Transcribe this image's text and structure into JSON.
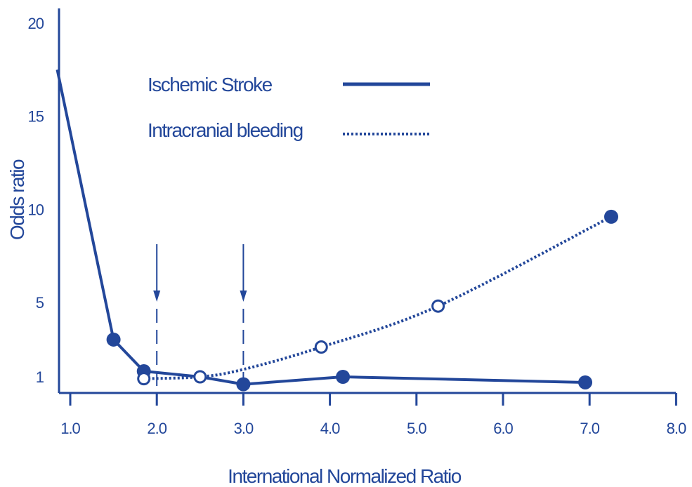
{
  "chart_data": {
    "type": "line",
    "xlabel": "International Normalized Ratio",
    "ylabel": "Odds ratio",
    "xlim": [
      0.85,
      8.0
    ],
    "ylim": [
      0,
      20
    ],
    "x_ticks": [
      1.0,
      2.0,
      3.0,
      4.0,
      5.0,
      6.0,
      7.0,
      8.0
    ],
    "x_tick_labels": [
      "1.0",
      "2.0",
      "3.0",
      "4.0",
      "5.0",
      "6.0",
      "7.0",
      "8.0"
    ],
    "y_ticks": [
      1,
      5,
      10,
      15,
      20
    ],
    "y_tick_labels": [
      "1",
      "5",
      "10",
      "15",
      "20"
    ],
    "legend_position": "top-center",
    "color": "#23479a",
    "series": [
      {
        "name": "Ischemic Stroke",
        "style": "solid",
        "marker": "filled-circle",
        "x": [
          0.85,
          1.5,
          1.85,
          2.5,
          3.0,
          4.15,
          6.95
        ],
        "y": [
          17.5,
          3.0,
          1.3,
          1.0,
          0.6,
          1.0,
          0.7
        ],
        "markers_at": [
          1.5,
          1.85,
          3.0,
          4.15,
          6.95
        ]
      },
      {
        "name": "Intracranial bleeding",
        "style": "dotted",
        "marker": "open-circle",
        "x": [
          1.85,
          2.5,
          3.0,
          3.9,
          5.25,
          7.25
        ],
        "y": [
          0.9,
          1.0,
          1.4,
          2.6,
          4.8,
          9.6
        ],
        "markers_at": [
          1.85,
          2.5,
          3.9,
          5.25
        ],
        "filled_markers_at": [
          7.25
        ]
      }
    ],
    "annotations": [
      {
        "type": "arrow",
        "x": 2.0
      },
      {
        "type": "arrow",
        "x": 3.0
      }
    ]
  }
}
